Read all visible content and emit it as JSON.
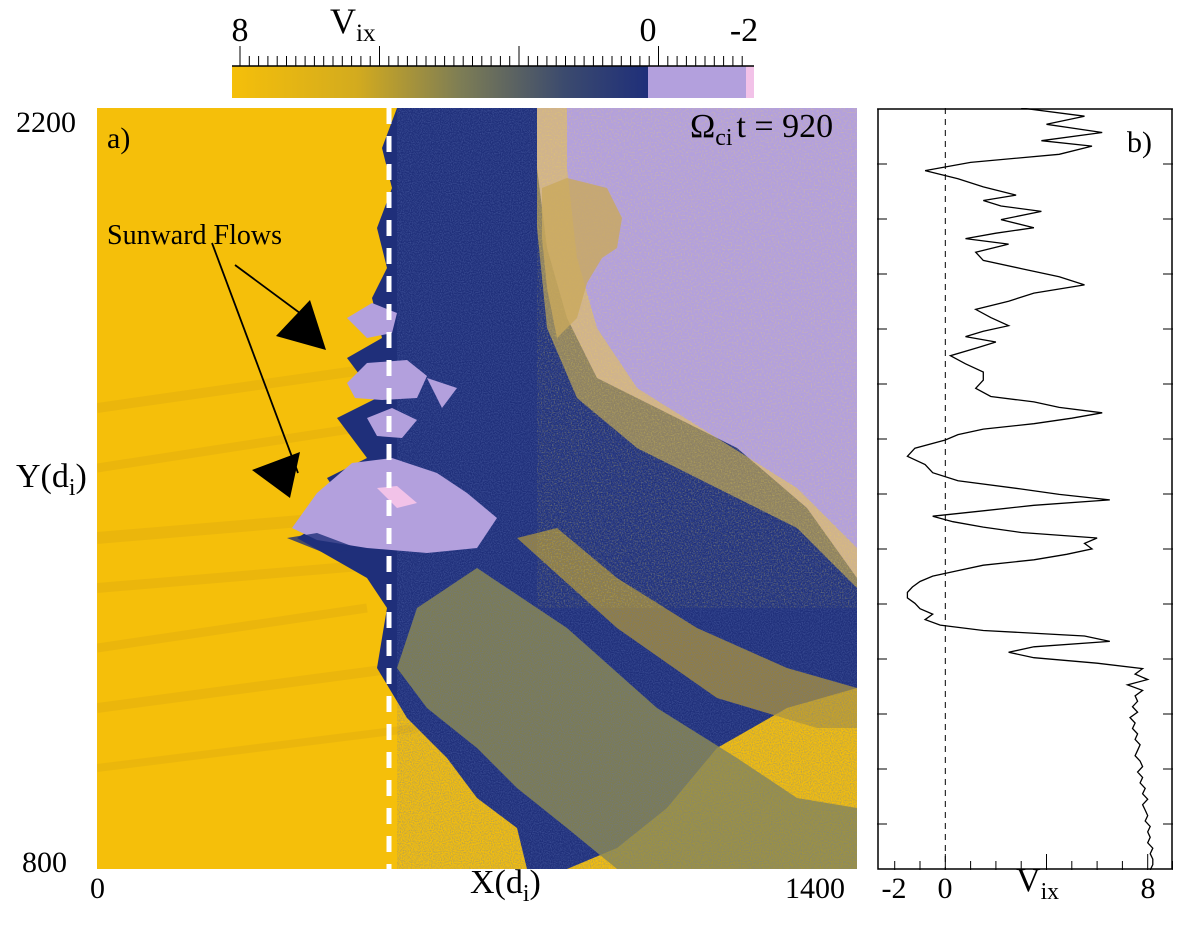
{
  "colors": {
    "gold": "#f5bf0a",
    "navy": "#1f2f7a",
    "lavender": "#b3a0dd",
    "pink": "#f2c2e8"
  },
  "colorbar": {
    "title_main": "V",
    "title_sub": "ix",
    "ticks": [
      "8",
      "0",
      "-2"
    ]
  },
  "panel_a": {
    "label": "a)",
    "time_omega": "Ω",
    "time_sub": "ci",
    "time_rest": "t = 920",
    "annotation": "Sunward Flows",
    "xlabel_main": "X(d",
    "xlabel_sub": "i",
    "xlabel_end": ")",
    "ylabel_main": "Y(d",
    "ylabel_sub": "i",
    "ylabel_end": ")",
    "x_min": "0",
    "x_max": "1400",
    "y_min": "800",
    "y_max": "2200"
  },
  "panel_b": {
    "label": "b)",
    "xlabel_main": "V",
    "xlabel_sub": "ix",
    "ticks": [
      "-2",
      "0",
      "8"
    ]
  },
  "chart_data": [
    {
      "type": "heatmap",
      "title": "",
      "xlabel": "X(di)",
      "ylabel": "Y(di)",
      "xlim": [
        0,
        1400
      ],
      "ylim": [
        800,
        2200
      ],
      "colorbar": {
        "label": "Vix",
        "range": [
          8,
          -2
        ]
      },
      "annotations": [
        "Sunward Flows",
        "Ωci t = 920"
      ]
    },
    {
      "type": "line",
      "xlabel": "Vix",
      "ylabel": "Y(di)",
      "xlim": [
        -2.7,
        9
      ],
      "ylim": [
        800,
        2200
      ],
      "series": [
        {
          "y": [
            2200,
            2185,
            2170,
            2155,
            2140,
            2130,
            2115,
            2100,
            2085,
            2070,
            2055,
            2040,
            2030,
            2020,
            2010,
            1995,
            1980,
            1970,
            1960,
            1950,
            1935,
            1920,
            1905,
            1890,
            1875,
            1860,
            1845,
            1830,
            1815,
            1800,
            1790,
            1780,
            1770,
            1760,
            1745,
            1730,
            1715,
            1700,
            1685,
            1670,
            1660,
            1650,
            1640,
            1630,
            1620,
            1610,
            1600,
            1590,
            1575,
            1560,
            1545,
            1530,
            1515,
            1500,
            1490,
            1480,
            1470,
            1460,
            1450,
            1440,
            1430,
            1420,
            1410,
            1400,
            1390,
            1380,
            1370,
            1360,
            1350,
            1340,
            1330,
            1320,
            1310,
            1300,
            1290,
            1280,
            1270,
            1260,
            1250,
            1240,
            1230,
            1220,
            1210,
            1200,
            1190,
            1180,
            1170,
            1160,
            1150,
            1140,
            1130,
            1120,
            1110,
            1100,
            1090,
            1080,
            1070,
            1060,
            1050,
            1040,
            1030,
            1020,
            1010,
            1000,
            990,
            980,
            970,
            960,
            950,
            940,
            930,
            920,
            910,
            900,
            890,
            880,
            870,
            860,
            850,
            840,
            830,
            820,
            810,
            800
          ],
          "x": [
            3,
            5.5,
            4,
            6.2,
            3.8,
            5.8,
            4.5,
            1.0,
            -0.8,
            0.5,
            1.5,
            2.8,
            1.5,
            2.2,
            3.8,
            2.2,
            3.5,
            2.0,
            0.8,
            2.5,
            1.2,
            1.5,
            3.0,
            4.5,
            5.5,
            3.5,
            2.5,
            1.2,
            1.8,
            2.5,
            1.5,
            0.8,
            2.0,
            1.3,
            0.2,
            0.8,
            1.5,
            1.5,
            1.2,
            1.8,
            3.5,
            4.5,
            6.2,
            5.0,
            3.5,
            1.5,
            0.5,
            0.0,
            -1.2,
            -1.5,
            -0.8,
            -0.5,
            0.5,
            3.0,
            4.5,
            6.5,
            3.5,
            1.5,
            -0.5,
            0.3,
            1.5,
            3.0,
            6.0,
            5.5,
            5.8,
            4.8,
            3.5,
            1.5,
            0.5,
            -0.5,
            -1.0,
            -1.3,
            -1.5,
            -1.5,
            -1.2,
            -1.0,
            -0.5,
            -0.8,
            -0.2,
            1.5,
            5.5,
            6.5,
            3.5,
            2.5,
            3.5,
            6.0,
            7.8,
            7.5,
            8.0,
            7.2,
            7.8,
            7.5,
            7.6,
            7.4,
            7.6,
            7.3,
            7.5,
            7.4,
            7.6,
            7.5,
            7.7,
            7.6,
            7.5,
            7.7,
            7.8,
            7.6,
            7.8,
            7.7,
            7.9,
            7.8,
            8.0,
            7.8,
            7.9,
            8.0,
            7.9,
            8.1,
            8.0,
            8.1,
            8.0,
            8.2,
            8.1,
            8.2,
            8.2,
            8.1
          ]
        }
      ]
    }
  ]
}
